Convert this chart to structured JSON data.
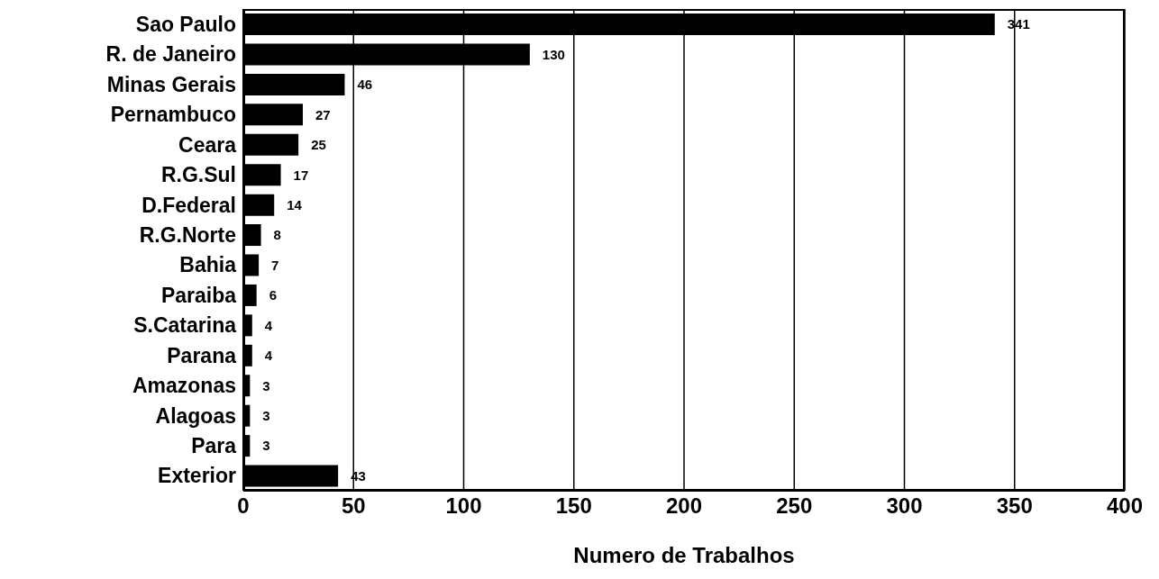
{
  "chart_data": {
    "type": "bar",
    "orientation": "horizontal",
    "xlabel": "Numero de Trabalhos",
    "categories": [
      "Sao Paulo",
      "R. de Janeiro",
      "Minas Gerais",
      "Pernambuco",
      "Ceara",
      "R.G.Sul",
      "D.Federal",
      "R.G.Norte",
      "Bahia",
      "Paraiba",
      "S.Catarina",
      "Parana",
      "Amazonas",
      "Alagoas",
      "Para",
      "Exterior"
    ],
    "values": [
      341,
      130,
      46,
      27,
      25,
      17,
      14,
      8,
      7,
      6,
      4,
      4,
      3,
      3,
      3,
      43
    ],
    "color": "#000000",
    "xlim": [
      0,
      400
    ],
    "xticks": [
      0,
      50,
      100,
      150,
      200,
      250,
      300,
      350,
      400
    ],
    "grid": "x",
    "data_labels": true,
    "legend": false
  }
}
